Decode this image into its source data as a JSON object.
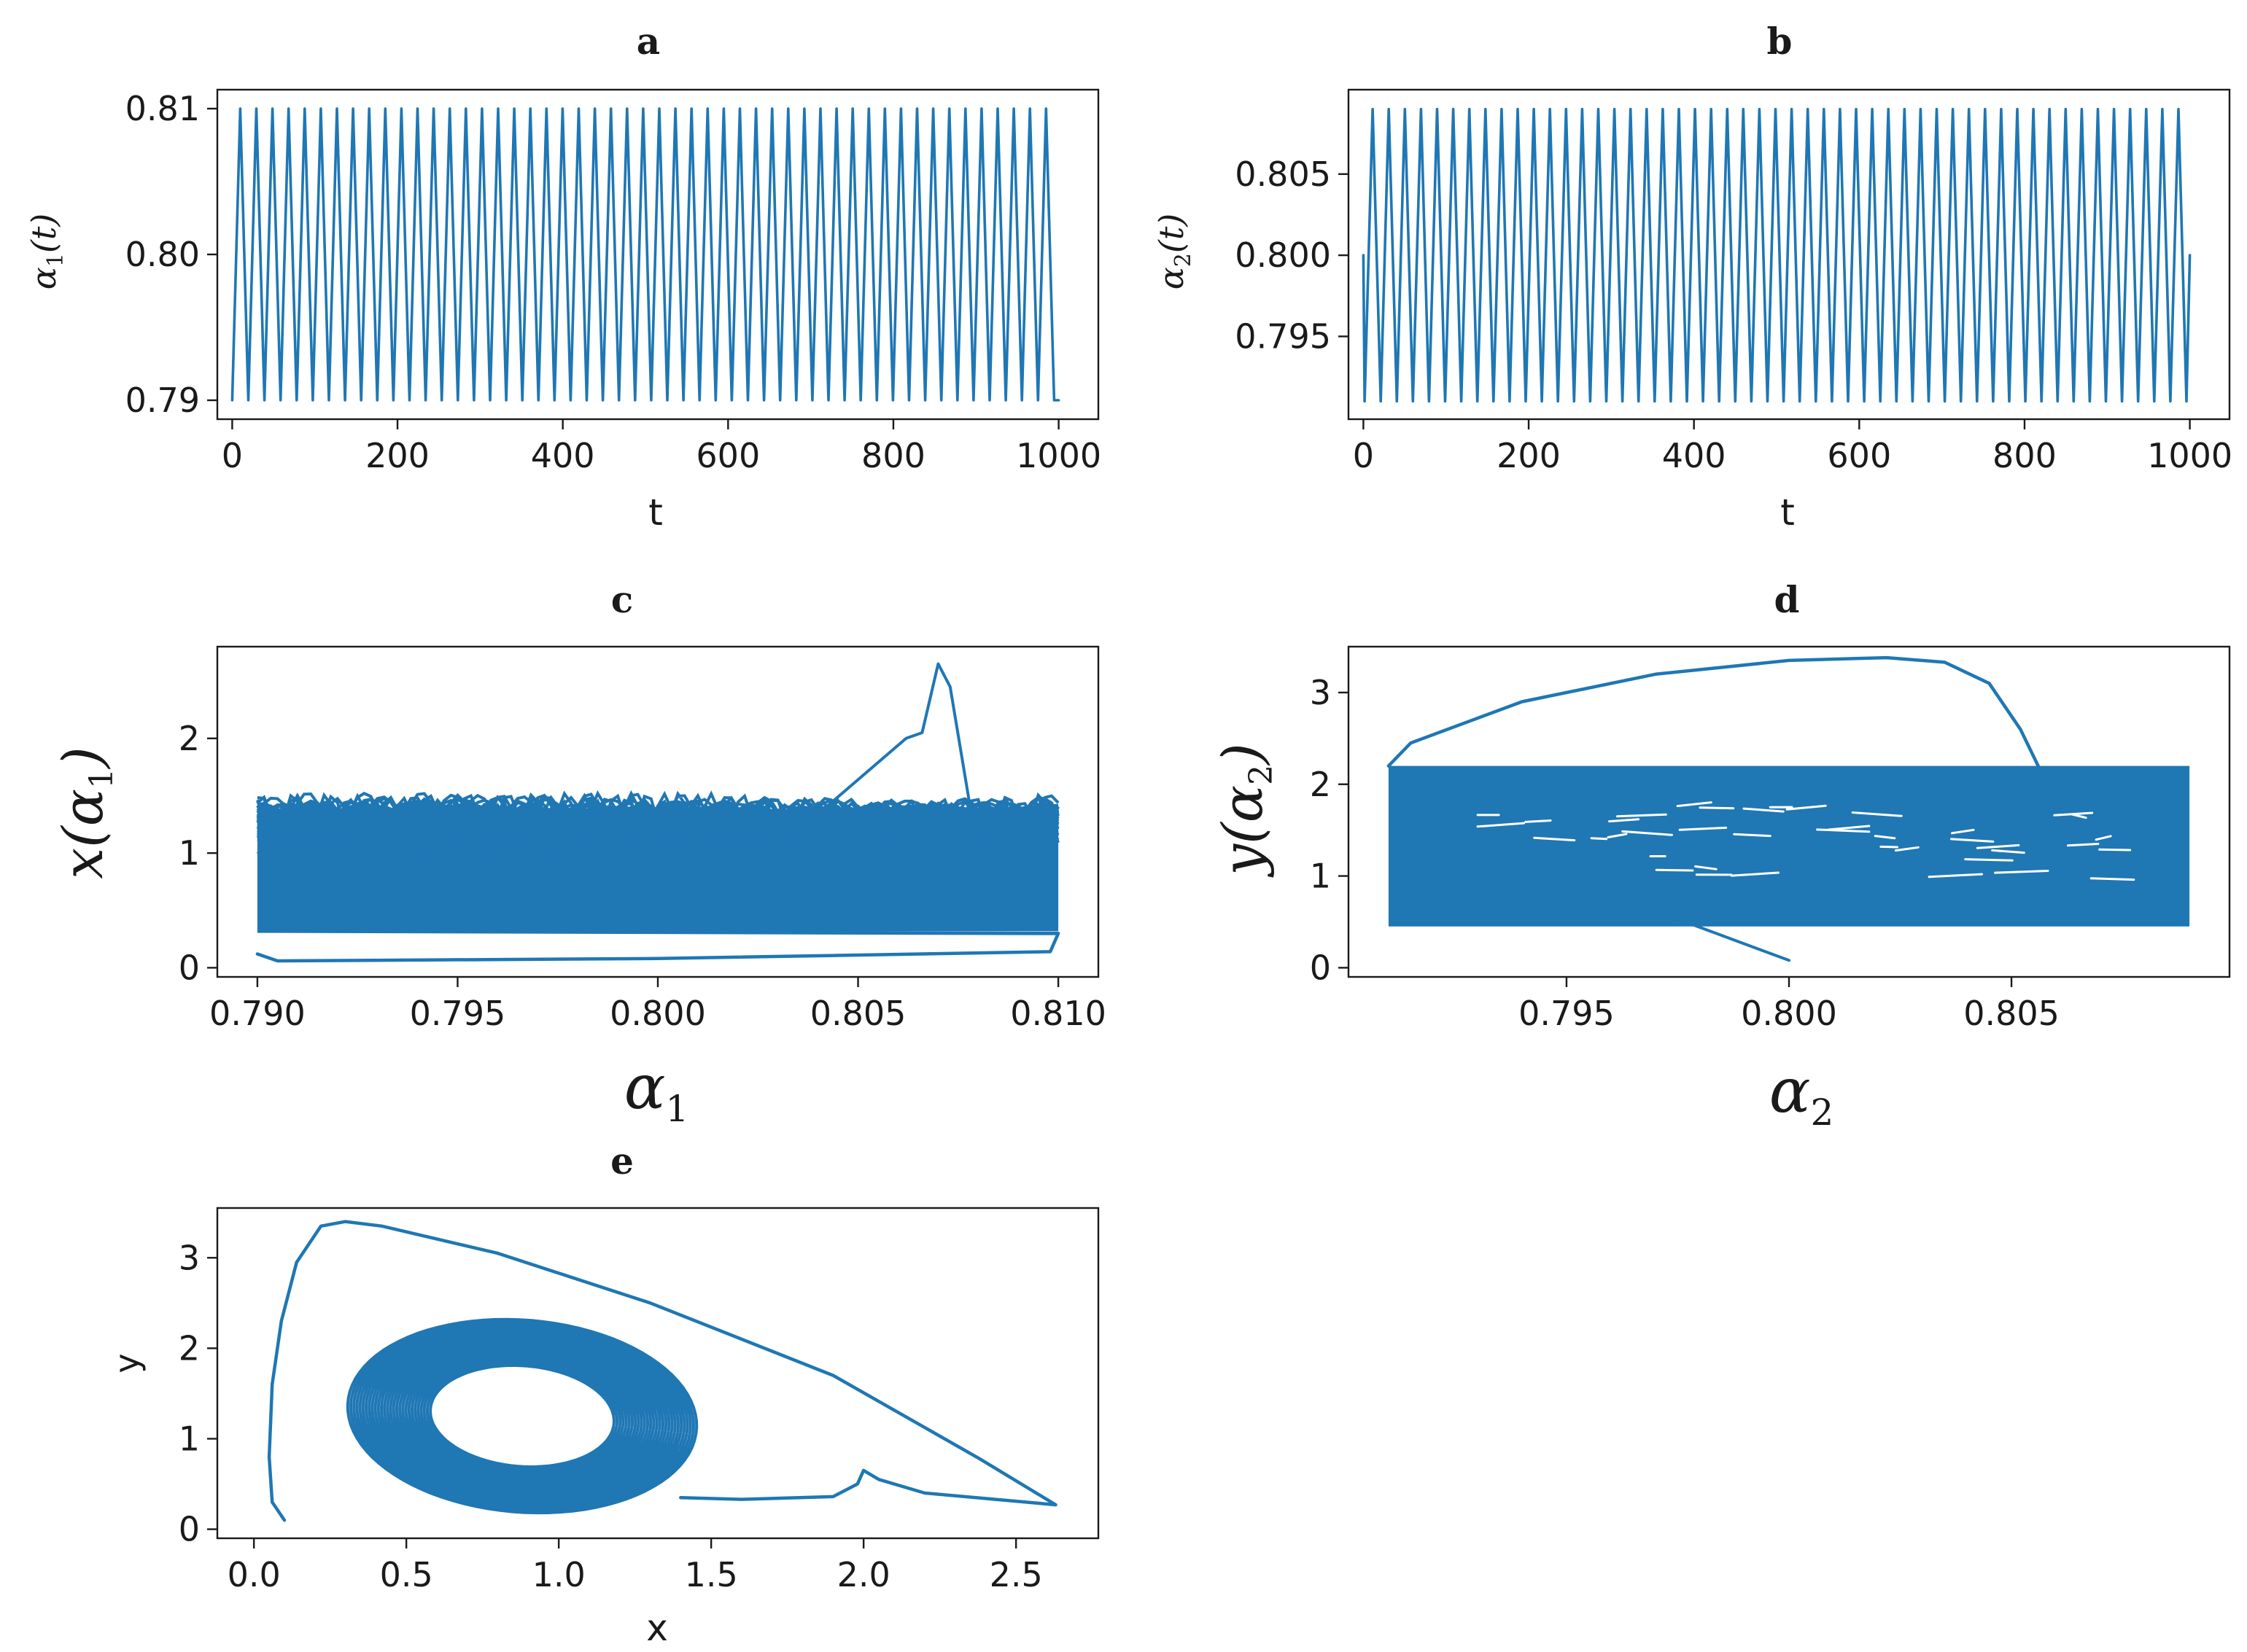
{
  "colors": {
    "series": "#1f77b4",
    "axes": "#1a1a1a",
    "background": "#ffffff"
  },
  "chart_data": [
    {
      "id": "a",
      "title": "a",
      "type": "line",
      "xlabel": "t",
      "ylabel": "α1(t)",
      "ylabel_parts": {
        "main": "α",
        "sub": "1",
        "tail": "(t)"
      },
      "xlim": [
        -18,
        1048
      ],
      "ylim": [
        0.7887,
        0.8113
      ],
      "xticks": [
        0,
        200,
        400,
        600,
        800,
        1000
      ],
      "xtick_labels": [
        "0",
        "200",
        "400",
        "600",
        "800",
        "1000"
      ],
      "yticks": [
        0.79,
        0.8,
        0.81
      ],
      "ytick_labels": [
        "0.79",
        "0.80",
        "0.81"
      ],
      "series": [
        {
          "kind": "oscillation",
          "t_start": 0,
          "t_end": 1000,
          "period": 19.5,
          "low": 0.79,
          "high": 0.81,
          "start_value": 0.79,
          "end_value": 0.79
        }
      ],
      "grid": false
    },
    {
      "id": "b",
      "title": "b",
      "type": "line",
      "xlabel": "t",
      "ylabel": "α2(t)",
      "ylabel_parts": {
        "main": "α",
        "sub": "2",
        "tail": "(t)"
      },
      "xlim": [
        -18,
        1048
      ],
      "ylim": [
        0.7899,
        0.8102
      ],
      "xticks": [
        0,
        200,
        400,
        600,
        800,
        1000
      ],
      "xtick_labels": [
        "0",
        "200",
        "400",
        "600",
        "800",
        "1000"
      ],
      "yticks": [
        0.795,
        0.8,
        0.805
      ],
      "ytick_labels": [
        "0.795",
        "0.800",
        "0.805"
      ],
      "series": [
        {
          "kind": "oscillation",
          "t_start": 0,
          "t_end": 1000,
          "period": 19.5,
          "low": 0.791,
          "high": 0.809,
          "start_value": 0.8,
          "end_value": 0.8
        }
      ],
      "grid": false
    },
    {
      "id": "c",
      "title": "c",
      "type": "line",
      "xlabel": "α1",
      "xlabel_parts": {
        "main": "α",
        "sub": "1"
      },
      "ylabel": "x(α1)",
      "ylabel_parts": {
        "pre": "x(",
        "main": "α",
        "sub": "1",
        "tail": ")"
      },
      "xlim": [
        0.789,
        0.811
      ],
      "ylim": [
        -0.08,
        2.8
      ],
      "xticks": [
        0.79,
        0.795,
        0.8,
        0.805,
        0.81
      ],
      "xtick_labels": [
        "0.790",
        "0.795",
        "0.800",
        "0.805",
        "0.810"
      ],
      "yticks": [
        0,
        1,
        2
      ],
      "ytick_labels": [
        "0",
        "1",
        "2"
      ],
      "band": {
        "x_min": 0.79,
        "x_max": 0.81,
        "y_min": 0.32,
        "y_max": 1.38,
        "bumps_top": 1.52
      },
      "spike": [
        [
          0.8042,
          1.4
        ],
        [
          0.8062,
          2.0
        ],
        [
          0.8066,
          2.05
        ],
        [
          0.807,
          2.65
        ],
        [
          0.8073,
          2.45
        ],
        [
          0.8078,
          1.4
        ]
      ],
      "initial_path": [
        [
          0.79,
          0.12
        ],
        [
          0.7905,
          0.06
        ],
        [
          0.8,
          0.08
        ],
        [
          0.8098,
          0.14
        ],
        [
          0.81,
          0.3
        ]
      ],
      "grid": false
    },
    {
      "id": "d",
      "title": "d",
      "type": "line",
      "xlabel": "α2",
      "xlabel_parts": {
        "main": "α",
        "sub": "2"
      },
      "ylabel": "y(α2)",
      "ylabel_parts": {
        "pre": "y(",
        "main": "α",
        "sub": "2",
        "tail": ")"
      },
      "xlim": [
        0.7901,
        0.8099
      ],
      "ylim": [
        -0.1,
        3.5
      ],
      "xticks": [
        0.795,
        0.8,
        0.805
      ],
      "xtick_labels": [
        "0.795",
        "0.800",
        "0.805"
      ],
      "yticks": [
        0,
        1,
        2,
        3
      ],
      "ytick_labels": [
        "0",
        "1",
        "2",
        "3"
      ],
      "band": {
        "x_min": 0.791,
        "x_max": 0.809,
        "y_min": 0.45,
        "y_max": 2.2
      },
      "arc": [
        [
          0.8056,
          2.2
        ],
        [
          0.8052,
          2.6
        ],
        [
          0.8045,
          3.1
        ],
        [
          0.8035,
          3.33
        ],
        [
          0.8022,
          3.38
        ],
        [
          0.8,
          3.35
        ],
        [
          0.797,
          3.2
        ],
        [
          0.794,
          2.9
        ],
        [
          0.7915,
          2.45
        ],
        [
          0.791,
          2.2
        ]
      ],
      "tail_path": [
        [
          0.8,
          0.08
        ],
        [
          0.7985,
          0.35
        ],
        [
          0.797,
          0.62
        ]
      ],
      "grid": false
    },
    {
      "id": "e",
      "title": "e",
      "type": "line",
      "xlabel": "x",
      "ylabel": "y",
      "xlim": [
        -0.12,
        2.77
      ],
      "ylim": [
        -0.1,
        3.55
      ],
      "xticks": [
        0,
        0.5,
        1.0,
        1.5,
        2.0,
        2.5
      ],
      "xtick_labels": [
        "0.0",
        "0.5",
        "1.0",
        "1.5",
        "2.0",
        "2.5"
      ],
      "yticks": [
        0,
        1,
        2,
        3
      ],
      "ytick_labels": [
        "0",
        "1",
        "2",
        "3"
      ],
      "transient": [
        [
          0.1,
          0.1
        ],
        [
          0.06,
          0.3
        ],
        [
          0.05,
          0.8
        ],
        [
          0.06,
          1.6
        ],
        [
          0.09,
          2.3
        ],
        [
          0.14,
          2.95
        ],
        [
          0.22,
          3.35
        ],
        [
          0.3,
          3.4
        ],
        [
          0.42,
          3.35
        ],
        [
          0.8,
          3.05
        ],
        [
          1.3,
          2.5
        ],
        [
          1.9,
          1.7
        ],
        [
          2.38,
          0.78
        ],
        [
          2.63,
          0.27
        ],
        [
          2.2,
          0.4
        ],
        [
          2.05,
          0.55
        ],
        [
          2.0,
          0.65
        ],
        [
          1.98,
          0.5
        ],
        [
          1.9,
          0.36
        ],
        [
          1.6,
          0.33
        ],
        [
          1.4,
          0.35
        ]
      ],
      "attractor": {
        "center": [
          0.88,
          1.25
        ],
        "rx_inner": 0.3,
        "ry_inner": 0.55,
        "rx_outer": 0.57,
        "ry_outer": 1.05,
        "loops": 28
      },
      "grid": false
    }
  ]
}
